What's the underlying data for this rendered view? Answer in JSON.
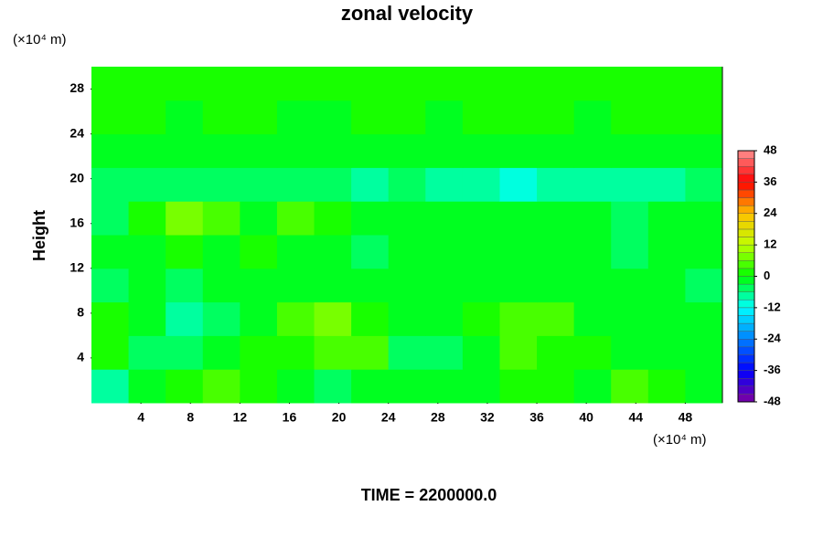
{
  "chart_data": {
    "type": "contour",
    "title": "zonal velocity",
    "ylabel": "Height",
    "xunit": "(×10⁴ m)",
    "yunit": "(×10⁴ m)",
    "annotation": "TIME = 2200000.0",
    "xlim": [
      0,
      51
    ],
    "ylim": [
      0,
      30
    ],
    "xticks": [
      4,
      8,
      12,
      16,
      20,
      24,
      28,
      32,
      36,
      40,
      44,
      48
    ],
    "yticks": [
      4,
      8,
      12,
      16,
      20,
      24,
      28
    ],
    "x": [
      1.5,
      4.5,
      7.5,
      10.5,
      13.5,
      16.5,
      19.5,
      22.5,
      25.5,
      28.5,
      31.5,
      34.5,
      37.5,
      40.5,
      43.5,
      46.5,
      49.5
    ],
    "y": [
      1.5,
      4.5,
      7.5,
      10.5,
      13.5,
      16.5,
      19.5,
      22.5,
      25.5,
      28.5
    ],
    "z": [
      [
        -8,
        -2,
        2,
        3,
        1,
        -2,
        -4,
        -3,
        -1,
        -2,
        -3,
        2,
        1,
        -2,
        3,
        1,
        -2
      ],
      [
        0,
        -4,
        -6,
        -3,
        0,
        2,
        5,
        3,
        -5,
        -6,
        -2,
        4,
        2,
        0,
        -1,
        -2,
        -1
      ],
      [
        2,
        -3,
        -7,
        -5,
        -1,
        3,
        6,
        2,
        -3,
        -3,
        0,
        5,
        3,
        -1,
        -2,
        -2,
        -1
      ],
      [
        -4,
        -3,
        -4,
        -3,
        -3,
        -2,
        -2,
        -3,
        -3,
        -3,
        -3,
        -2,
        -2,
        -3,
        -3,
        -2,
        -4
      ],
      [
        -3,
        -1,
        2,
        -2,
        0,
        -3,
        -2,
        -4,
        -2,
        -3,
        -2,
        -1,
        -3,
        -2,
        -4,
        -3,
        -3
      ],
      [
        -4,
        0,
        6,
        5,
        -1,
        3,
        0,
        -2,
        -3,
        -1,
        -2,
        -3,
        -2,
        -3,
        -4,
        -3,
        -2
      ],
      [
        -5,
        -6,
        -4,
        -5,
        -4,
        -6,
        -5,
        -7,
        -6,
        -8,
        -9,
        -10,
        -9,
        -8,
        -8,
        -7,
        -6
      ],
      [
        -1,
        -1,
        -1,
        -1,
        -1,
        -1,
        -1,
        -1,
        -1,
        -1,
        -1,
        -1,
        -1,
        -1,
        -1,
        -1,
        -1
      ],
      [
        0,
        0,
        -1,
        0,
        0,
        -1,
        -1,
        0,
        0,
        -1,
        0,
        0,
        0,
        -1,
        0,
        0,
        0
      ],
      [
        0,
        0,
        0,
        0,
        0,
        0,
        0,
        0,
        0,
        0,
        0,
        0,
        0,
        0,
        0,
        0,
        0
      ]
    ],
    "clevels": [
      -48,
      -45,
      -42,
      -39,
      -36,
      -33,
      -30,
      -27,
      -24,
      -21,
      -18,
      -15,
      -12,
      -9,
      -6,
      -3,
      0,
      3,
      6,
      9,
      12,
      15,
      18,
      21,
      24,
      27,
      30,
      33,
      36,
      39,
      42,
      45,
      48
    ],
    "cticks": [
      -48,
      -36,
      -24,
      -12,
      0,
      12,
      24,
      36,
      48
    ],
    "colormap": [
      "#8000a0",
      "#0000ff",
      "#0080ff",
      "#00ffff",
      "#00ff00",
      "#c0ff00",
      "#ffc000",
      "#ff0000",
      "#ff9090"
    ]
  }
}
